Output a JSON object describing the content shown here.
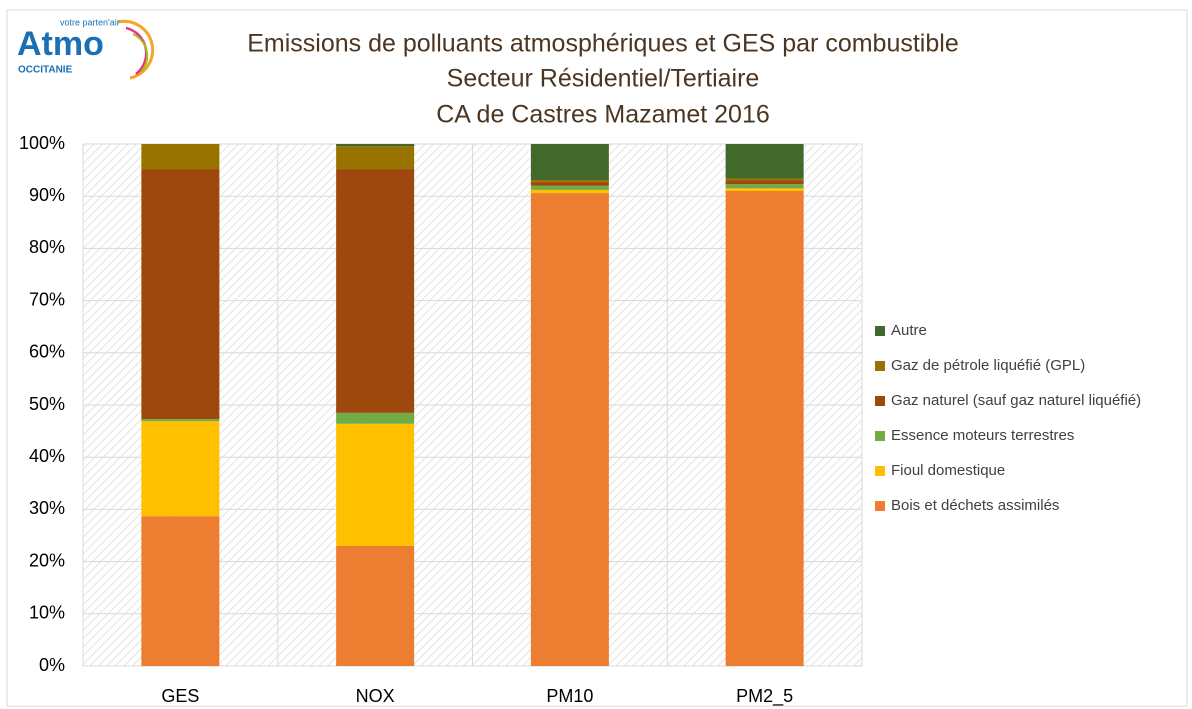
{
  "logo": {
    "name": "Atmo",
    "tagline": "votre parten'air",
    "region": "OCCITANIE"
  },
  "chart_data": {
    "type": "stacked-bar",
    "title": [
      "Emissions de polluants atmosphériques et GES par combustible",
      "Secteur Résidentiel/Tertiaire",
      "CA de Castres Mazamet 2016"
    ],
    "categories": [
      "GES",
      "NOX",
      "PM10",
      "PM2_5"
    ],
    "series": [
      {
        "name": "Bois et déchets assimilés",
        "color": "#ed7d31",
        "values": [
          28.7,
          23.0,
          90.6,
          91.0
        ]
      },
      {
        "name": "Fioul domestique",
        "color": "#ffc000",
        "values": [
          18.2,
          23.4,
          0.6,
          0.5
        ]
      },
      {
        "name": "Essence moteurs terrestres",
        "color": "#70ad47",
        "values": [
          0.4,
          2.1,
          0.8,
          0.8
        ]
      },
      {
        "name": "Gaz naturel (sauf gaz naturel liquéfié)",
        "color": "#9e480e",
        "values": [
          47.9,
          46.7,
          0.7,
          0.7
        ]
      },
      {
        "name": "Gaz de pétrole liquéfié (GPL)",
        "color": "#997300",
        "values": [
          4.8,
          4.4,
          0.4,
          0.4
        ]
      },
      {
        "name": "Autre",
        "color": "#43682b",
        "values": [
          0,
          0.4,
          6.9,
          6.6
        ]
      }
    ],
    "ylim": [
      0,
      100
    ],
    "yticks": [
      {
        "value": 0,
        "label": "0%"
      },
      {
        "value": 10,
        "label": "10%"
      },
      {
        "value": 20,
        "label": "20%"
      },
      {
        "value": 30,
        "label": "30%"
      },
      {
        "value": 40,
        "label": "40%"
      },
      {
        "value": 50,
        "label": "50%"
      },
      {
        "value": 60,
        "label": "60%"
      },
      {
        "value": 70,
        "label": "70%"
      },
      {
        "value": 80,
        "label": "80%"
      },
      {
        "value": 90,
        "label": "90%"
      },
      {
        "value": 100,
        "label": "100%"
      }
    ],
    "grid": true,
    "legend": "right"
  }
}
